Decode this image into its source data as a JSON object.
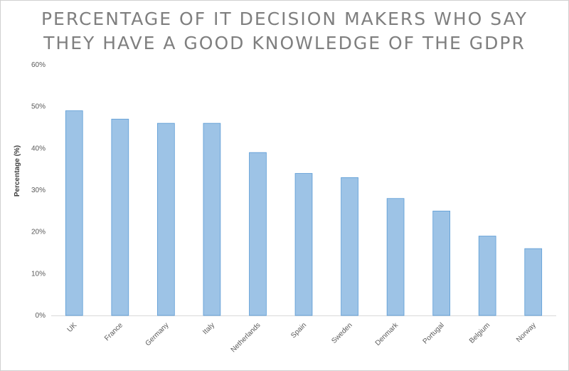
{
  "chart_data": {
    "type": "bar",
    "title_lines": [
      "PERCENTAGE OF IT DECISION MAKERS WHO SAY",
      "THEY HAVE A GOOD KNOWLEDGE OF THE GDPR"
    ],
    "xlabel": "",
    "ylabel": "Percentage (%)",
    "categories": [
      "UK",
      "France",
      "Germany",
      "Italy",
      "Netherlands",
      "Spain",
      "Sweden",
      "Denmark",
      "Portugal",
      "Belgium",
      "Norway"
    ],
    "values": [
      49,
      47,
      46,
      46,
      39,
      34,
      33,
      28,
      25,
      19,
      16
    ],
    "ylim": [
      0,
      60
    ],
    "yticks": [
      0,
      10,
      20,
      30,
      40,
      50,
      60
    ],
    "ytick_labels": [
      "0%",
      "10%",
      "20%",
      "30%",
      "40%",
      "50%",
      "60%"
    ],
    "grid": false,
    "legend": "none",
    "colors": {
      "bar_fill": "#9dc3e6",
      "bar_stroke": "#5b9bd5",
      "title": "#7f7f7f"
    }
  }
}
